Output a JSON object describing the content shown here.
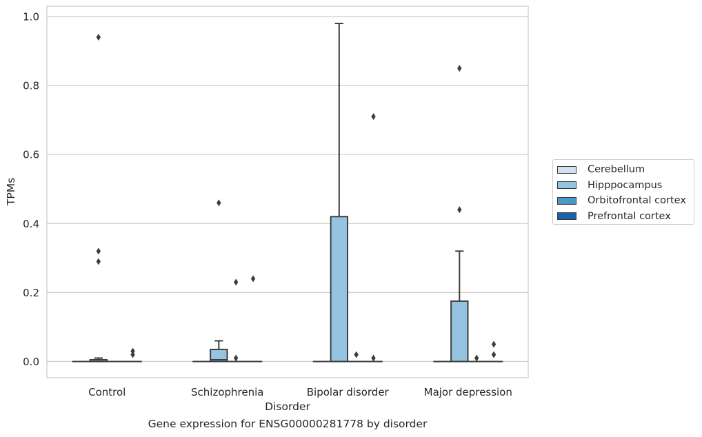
{
  "caption": "Gene expression for ENSG00000281778 by disorder",
  "chart_data": {
    "type": "box",
    "title": "",
    "xlabel": "Disorder",
    "ylabel": "TPMs",
    "ylim": [
      -0.047,
      1.03
    ],
    "yticks": [
      0.0,
      0.2,
      0.4,
      0.6,
      0.8,
      1.0
    ],
    "ytick_labels": [
      "0.0",
      "0.2",
      "0.4",
      "0.6",
      "0.8",
      "1.0"
    ],
    "grid": true,
    "legend_position": "center right, outside plot",
    "categories": [
      "Control",
      "Schizophrenia",
      "Bipolar disorder",
      "Major depression"
    ],
    "series": [
      {
        "name": "Cerebellum",
        "color": "#d0e1f2",
        "boxes": [
          {
            "q1": 0,
            "median": 0,
            "q3": 0,
            "whisker_low": 0,
            "whisker_high": 0,
            "outliers": []
          },
          {
            "q1": 0,
            "median": 0,
            "q3": 0,
            "whisker_low": 0,
            "whisker_high": 0,
            "outliers": []
          },
          {
            "q1": 0,
            "median": 0,
            "q3": 0,
            "whisker_low": 0,
            "whisker_high": 0,
            "outliers": []
          },
          {
            "q1": 0,
            "median": 0,
            "q3": 0,
            "whisker_low": 0,
            "whisker_high": 0,
            "outliers": []
          }
        ]
      },
      {
        "name": "Hipppocampus",
        "color": "#94c4df",
        "boxes": [
          {
            "q1": 0,
            "median": 0,
            "q3": 0.005,
            "whisker_low": 0,
            "whisker_high": 0.01,
            "outliers": [
              0.29,
              0.32,
              0.94
            ]
          },
          {
            "q1": 0,
            "median": 0.005,
            "q3": 0.035,
            "whisker_low": 0,
            "whisker_high": 0.06,
            "outliers": [
              0.46
            ]
          },
          {
            "q1": 0,
            "median": 0,
            "q3": 0.42,
            "whisker_low": 0,
            "whisker_high": 0.98,
            "outliers": []
          },
          {
            "q1": 0,
            "median": 0,
            "q3": 0.175,
            "whisker_low": 0,
            "whisker_high": 0.32,
            "outliers": [
              0.44,
              0.85
            ]
          }
        ]
      },
      {
        "name": "Orbitofrontal cortex",
        "color": "#4a98c9",
        "boxes": [
          {
            "q1": 0,
            "median": 0,
            "q3": 0,
            "whisker_low": 0,
            "whisker_high": 0,
            "outliers": []
          },
          {
            "q1": 0,
            "median": 0,
            "q3": 0,
            "whisker_low": 0,
            "whisker_high": 0,
            "outliers": [
              0.01,
              0.23
            ]
          },
          {
            "q1": 0,
            "median": 0,
            "q3": 0,
            "whisker_low": 0,
            "whisker_high": 0,
            "outliers": [
              0.02
            ]
          },
          {
            "q1": 0,
            "median": 0,
            "q3": 0,
            "whisker_low": 0,
            "whisker_high": 0,
            "outliers": [
              0.01
            ]
          }
        ]
      },
      {
        "name": "Prefrontal cortex",
        "color": "#1764ab",
        "boxes": [
          {
            "q1": 0,
            "median": 0,
            "q3": 0,
            "whisker_low": 0,
            "whisker_high": 0,
            "outliers": [
              0.02,
              0.03
            ]
          },
          {
            "q1": 0,
            "median": 0,
            "q3": 0,
            "whisker_low": 0,
            "whisker_high": 0,
            "outliers": [
              0.24
            ]
          },
          {
            "q1": 0,
            "median": 0,
            "q3": 0,
            "whisker_low": 0,
            "whisker_high": 0,
            "outliers": [
              0.01,
              0.71
            ]
          },
          {
            "q1": 0,
            "median": 0,
            "q3": 0,
            "whisker_low": 0,
            "whisker_high": 0,
            "outliers": [
              0.02,
              0.05
            ]
          }
        ]
      }
    ]
  }
}
